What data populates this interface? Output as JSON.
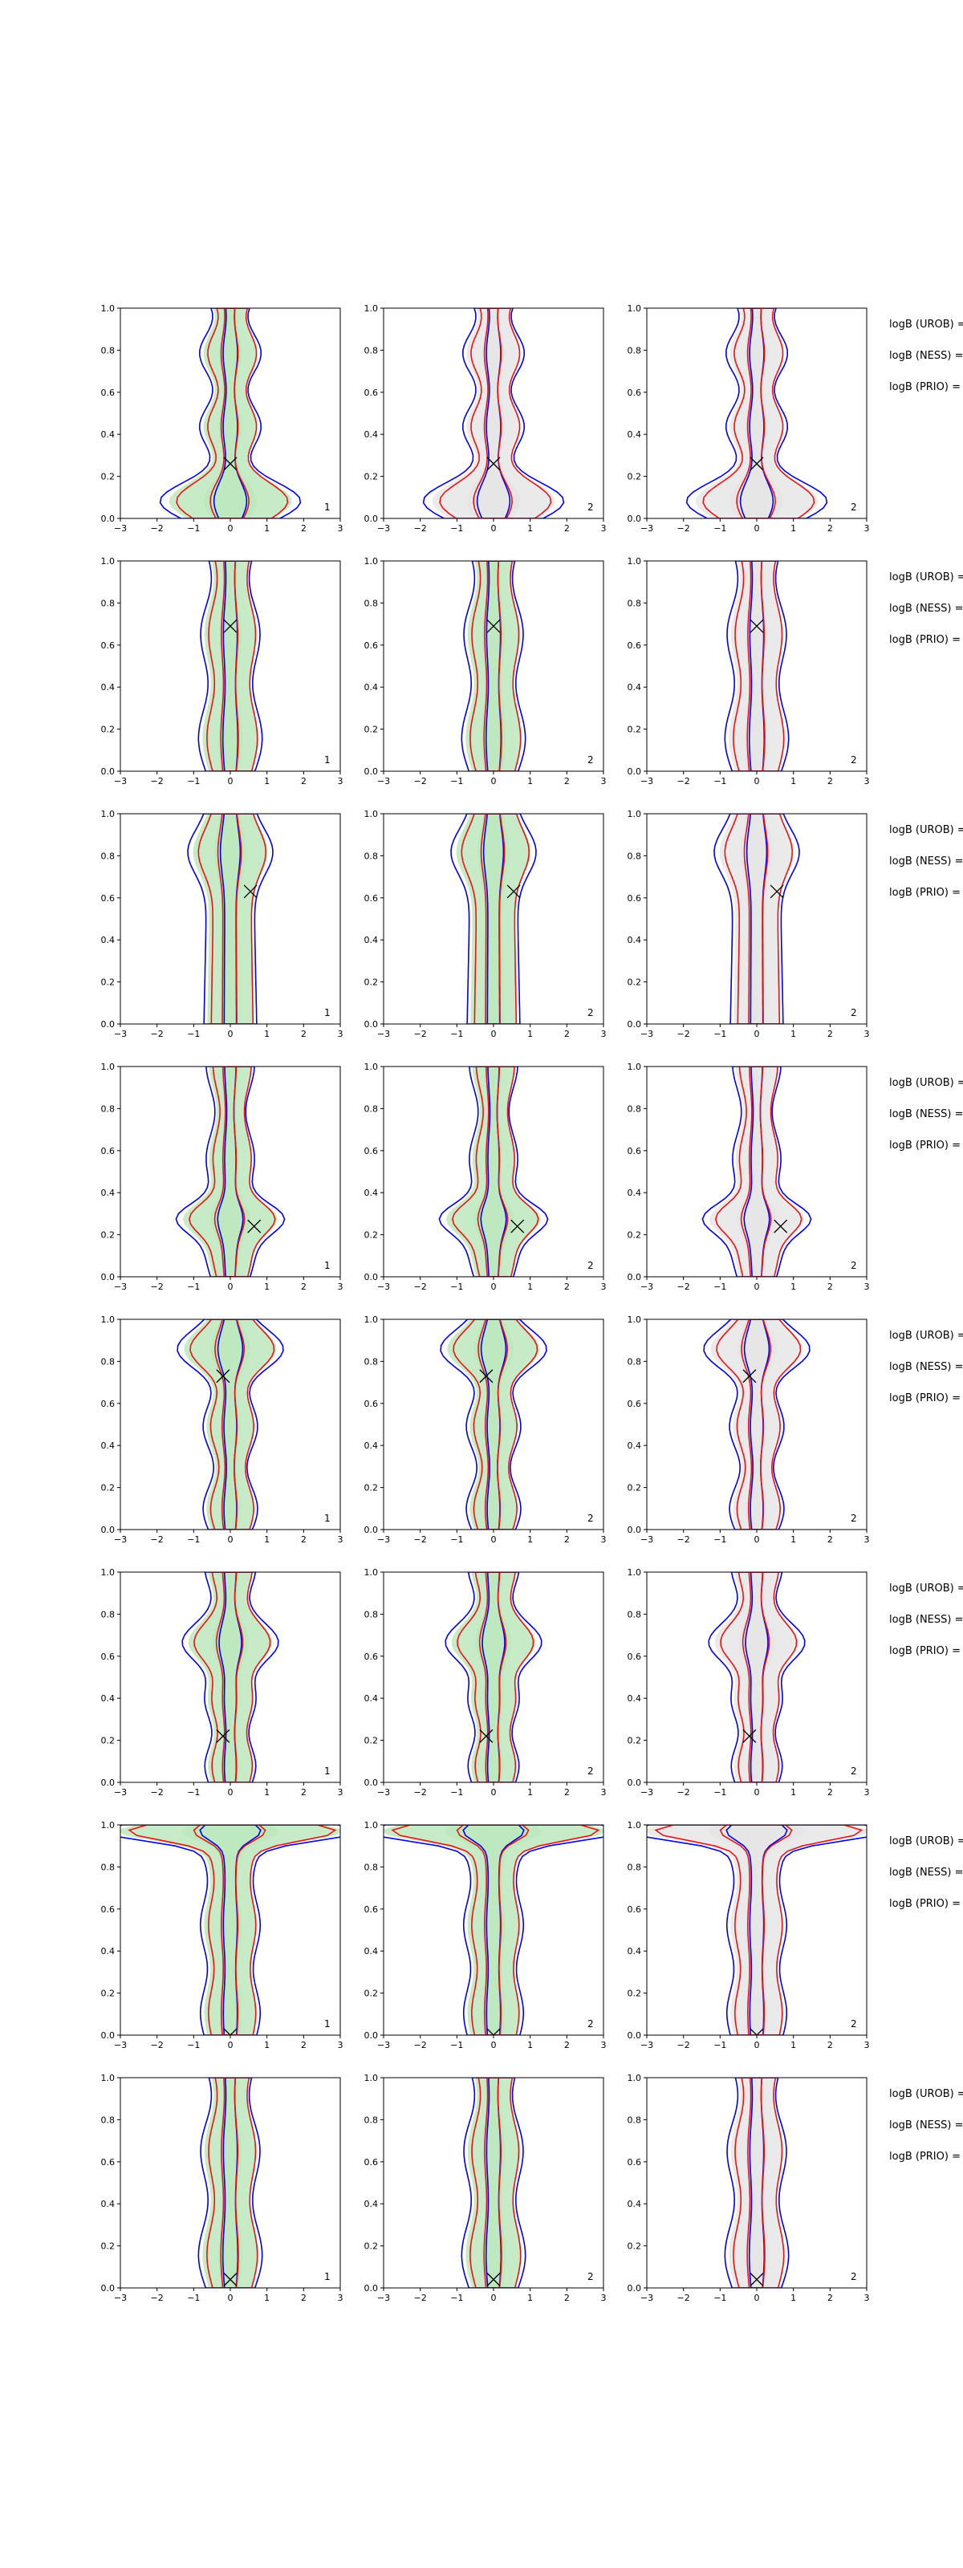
{
  "figure": {
    "label_prefixes": [
      "logB (UROB) =",
      "logB (NESS) =",
      "logB (PRIO) ="
    ]
  },
  "chart_data": {
    "type": "contour",
    "xlim": [
      -3,
      3
    ],
    "ylim": [
      0.0,
      1.0
    ],
    "xticks": [
      "−3",
      "−2",
      "−1",
      "0",
      "1",
      "2",
      "3"
    ],
    "yticks": [
      "0.0",
      "0.2",
      "0.4",
      "0.6",
      "0.8",
      "1.0"
    ],
    "colors": {
      "blue": "#0000ee",
      "red": "#ee1111",
      "green_fill": "#bde8bd",
      "grey_fill": "#e6e6e6"
    },
    "rows": [
      {
        "marker": {
          "x": 0.0,
          "y": 0.26
        },
        "annotations": [
          "1",
          "2",
          "2"
        ],
        "shape": "narrow-flare-bottom",
        "panel_fills": [
          "green",
          "grey",
          "grey"
        ]
      },
      {
        "marker": {
          "x": 0.0,
          "y": 0.69
        },
        "annotations": [
          "1",
          "2",
          "2"
        ],
        "shape": "narrow",
        "panel_fills": [
          "green",
          "green",
          "grey"
        ]
      },
      {
        "marker": {
          "x": 0.55,
          "y": 0.63
        },
        "annotations": [
          "1",
          "2",
          "2"
        ],
        "shape": "wide-top",
        "panel_fills": [
          "green",
          "green",
          "grey"
        ]
      },
      {
        "marker": {
          "x": 0.65,
          "y": 0.24
        },
        "annotations": [
          "1",
          "2",
          "2"
        ],
        "shape": "bulge-low",
        "panel_fills": [
          "green",
          "green",
          "grey"
        ]
      },
      {
        "marker": {
          "x": -0.2,
          "y": 0.73
        },
        "annotations": [
          "1",
          "2",
          "2"
        ],
        "shape": "bulge-high",
        "panel_fills": [
          "green",
          "green",
          "grey"
        ]
      },
      {
        "marker": {
          "x": -0.2,
          "y": 0.22
        },
        "annotations": [
          "1",
          "2",
          "2"
        ],
        "shape": "bulge-mid",
        "panel_fills": [
          "green",
          "green",
          "grey"
        ]
      },
      {
        "marker": {
          "x": 0.0,
          "y": 0.0
        },
        "annotations": [
          "1",
          "2",
          "2"
        ],
        "shape": "cap-top",
        "panel_fills": [
          "green",
          "green",
          "grey"
        ]
      },
      {
        "marker": {
          "x": 0.0,
          "y": 0.04
        },
        "annotations": [
          "1",
          "2",
          "2"
        ],
        "shape": "narrow",
        "panel_fills": [
          "green",
          "green",
          "grey"
        ]
      }
    ]
  }
}
